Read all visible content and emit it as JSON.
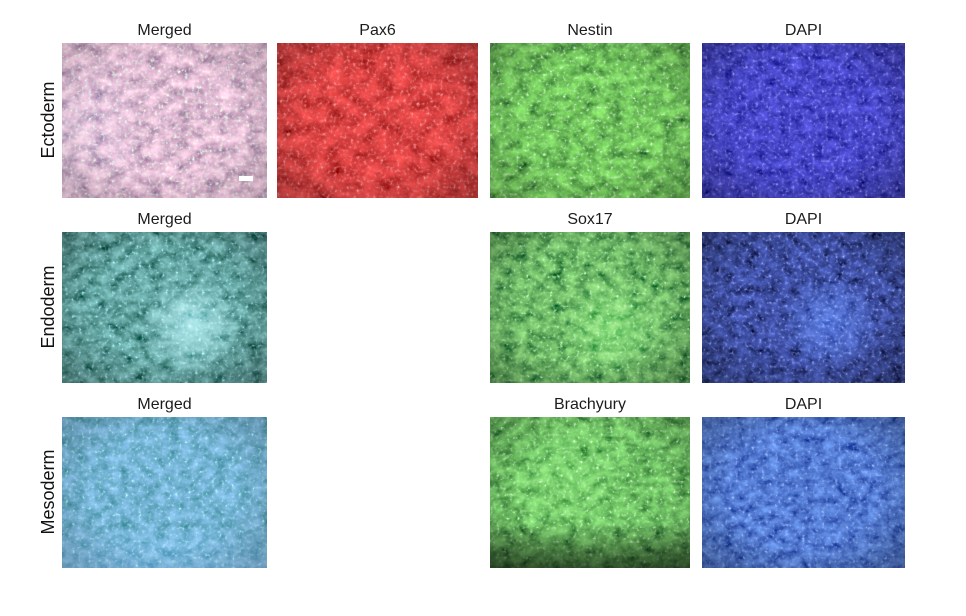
{
  "rows": [
    {
      "label": "Ectoderm",
      "panels": [
        {
          "title": "Merged",
          "stain": "merged",
          "colors": {
            "dark": "#6e3b64",
            "bright": "#ef98c6",
            "speckle": "#7be8ff",
            "speckle2": "#9dd06a"
          },
          "grain": 0.07,
          "overlays": [
            {
              "kind": "cluster",
              "color": "#7a86e0",
              "x": "7%",
              "y": "55%",
              "r": 38,
              "a": 0.3
            },
            {
              "kind": "vignette",
              "a": 0.18
            }
          ],
          "scalebar": true
        },
        {
          "title": "Pax6",
          "stain": "red",
          "colors": {
            "dark": "#720404",
            "bright": "#e01212",
            "speckle": "#ff4040"
          },
          "grain": 0.06,
          "overlays": [
            {
              "kind": "vignette",
              "a": 0.25
            }
          ]
        },
        {
          "title": "Nestin",
          "stain": "green",
          "colors": {
            "dark": "#0c4009",
            "bright": "#38bb20",
            "speckle": "#8cff7c"
          },
          "grain": 0.075,
          "overlays": [
            {
              "kind": "vignette",
              "a": 0.25
            }
          ]
        },
        {
          "title": "DAPI",
          "stain": "blue",
          "colors": {
            "dark": "#04045c",
            "bright": "#1414b4",
            "speckle": "#4040ff"
          },
          "grain": 0.09,
          "overlays": [
            {
              "kind": "vignette",
              "a": 0.3
            }
          ]
        }
      ]
    },
    {
      "label": "Endoderm",
      "panels": [
        {
          "title": "Merged",
          "stain": "merged",
          "colors": {
            "dark": "#04251d",
            "bright": "#2e7e79",
            "speckle": "#54c8f2"
          },
          "grain": 0.08,
          "overlays": [
            {
              "kind": "cluster",
              "color": "#8fe2f4",
              "x": "63%",
              "y": "62%",
              "r": 31,
              "a": 0.8
            },
            {
              "kind": "vignette",
              "a": 0.3
            }
          ]
        },
        {
          "title": "Sox17",
          "stain": "green",
          "colors": {
            "dark": "#05320a",
            "bright": "#39a32c",
            "speckle": "#6aff66"
          },
          "grain": 0.08,
          "overlays": [
            {
              "kind": "cluster",
              "color": "#52d63e",
              "x": "60%",
              "y": "63%",
              "r": 33,
              "a": 0.65
            },
            {
              "kind": "vignette",
              "a": 0.3
            }
          ]
        },
        {
          "title": "DAPI",
          "stain": "blue",
          "colors": {
            "dark": "#02041e",
            "bright": "#101a7e",
            "speckle": "#3448e8"
          },
          "grain": 0.09,
          "overlays": [
            {
              "kind": "cluster",
              "color": "#2e52d8",
              "x": "63%",
              "y": "60%",
              "r": 32,
              "a": 0.75
            },
            {
              "kind": "vignette",
              "a": 0.35
            }
          ]
        }
      ]
    },
    {
      "label": "Mesoderm",
      "panels": [
        {
          "title": "Merged",
          "stain": "merged",
          "colors": {
            "dark": "#14506e",
            "bright": "#3a85cd",
            "speckle": "#55d0f0"
          },
          "grain": 0.085,
          "overlays": [
            {
              "kind": "bottomglow",
              "color": "#2b4be0",
              "a": 0.55
            },
            {
              "kind": "vignette",
              "a": 0.22
            }
          ]
        },
        {
          "title": "Brachyury",
          "stain": "green",
          "colors": {
            "dark": "#0a3c0a",
            "bright": "#36b128",
            "speckle": "#79ff6e"
          },
          "grain": 0.08,
          "overlays": [
            {
              "kind": "cluster",
              "color": "#49d43a",
              "x": "40%",
              "y": "42%",
              "r": 48,
              "a": 0.4
            },
            {
              "kind": "bottomdark",
              "a": 0.55
            },
            {
              "kind": "vignette",
              "a": 0.25
            }
          ]
        },
        {
          "title": "DAPI",
          "stain": "blue",
          "colors": {
            "dark": "#041063",
            "bright": "#2046cf",
            "speckle": "#3d63ff"
          },
          "grain": 0.09,
          "overlays": [
            {
              "kind": "vignette",
              "a": 0.3
            }
          ]
        }
      ]
    }
  ],
  "scalebar_color": "#ffffff",
  "background_color": "#ffffff",
  "text_color": "#1c1c1c"
}
